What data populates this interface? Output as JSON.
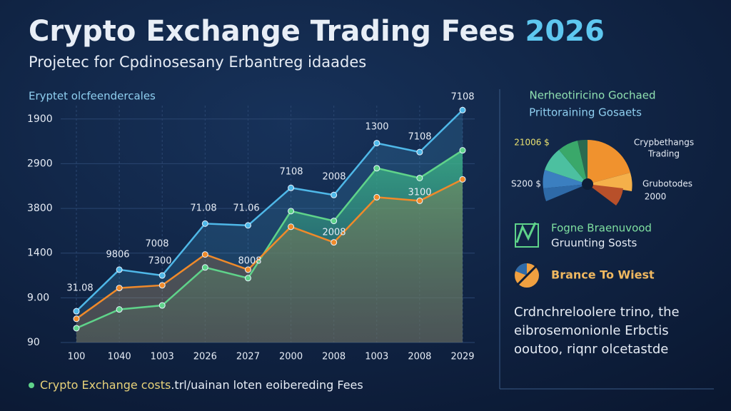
{
  "chart_data": {
    "type": "line",
    "title": "Crypto Exchange Trading Fees",
    "title_highlight": "2026",
    "subtitle": "Projetec for Cpdinosesany Erbantreg idaades",
    "panel_title": "Eryptet olcfeendercales",
    "categories": [
      "100",
      "1040",
      "1003",
      "2026",
      "2027",
      "2000",
      "2008",
      "1003",
      "2008",
      "2029"
    ],
    "ylim": [
      0,
      5.3
    ],
    "yticks": [
      {
        "value": 0,
        "label": "90"
      },
      {
        "value": 1,
        "label": "9.00"
      },
      {
        "value": 2,
        "label": "1400"
      },
      {
        "value": 3,
        "label": "3800"
      },
      {
        "value": 4,
        "label": "2900"
      },
      {
        "value": 5,
        "label": "1900"
      }
    ],
    "grid": true,
    "series": [
      {
        "color": "#4fb8e8",
        "values": [
          0.7,
          1.63,
          1.5,
          2.66,
          2.62,
          3.46,
          3.3,
          4.46,
          4.26,
          5.2
        ]
      },
      {
        "color": "#5fd38a",
        "values": [
          0.32,
          0.74,
          0.83,
          1.68,
          1.44,
          2.94,
          2.72,
          3.9,
          3.68,
          4.3
        ]
      },
      {
        "color": "#f08a2a",
        "values": [
          0.53,
          1.22,
          1.28,
          1.97,
          1.63,
          2.59,
          2.24,
          3.25,
          3.17,
          3.65
        ]
      }
    ],
    "annotations": [
      "31.08",
      "9806",
      "7008",
      "7300",
      "71.08",
      "71.06",
      "7108",
      "2008",
      "1300",
      "7108",
      "7108",
      "2008",
      "8008",
      "3100"
    ],
    "legend_text": "Crypto Exchange costs",
    "legend_rest": ".trl/uainan loten eoibereding Fees"
  },
  "side_panel": {
    "title": [
      "Nerheotiricino Gochaed",
      "Prittoraining Gosaets"
    ],
    "fan_labels": [
      "21006 $",
      "Crypbethangs",
      "Trading",
      "S200 $",
      "Grubotodes",
      "2000"
    ],
    "items": [
      [
        "Fogne Braenuvood",
        "Gruunting Sosts"
      ],
      [
        "Brance To Wiest"
      ]
    ],
    "paragraph": [
      "Crdnchreloolere trino, the",
      "eibrosemonionle Erbctis",
      "ooutoo, riqnr olcetastde"
    ]
  }
}
